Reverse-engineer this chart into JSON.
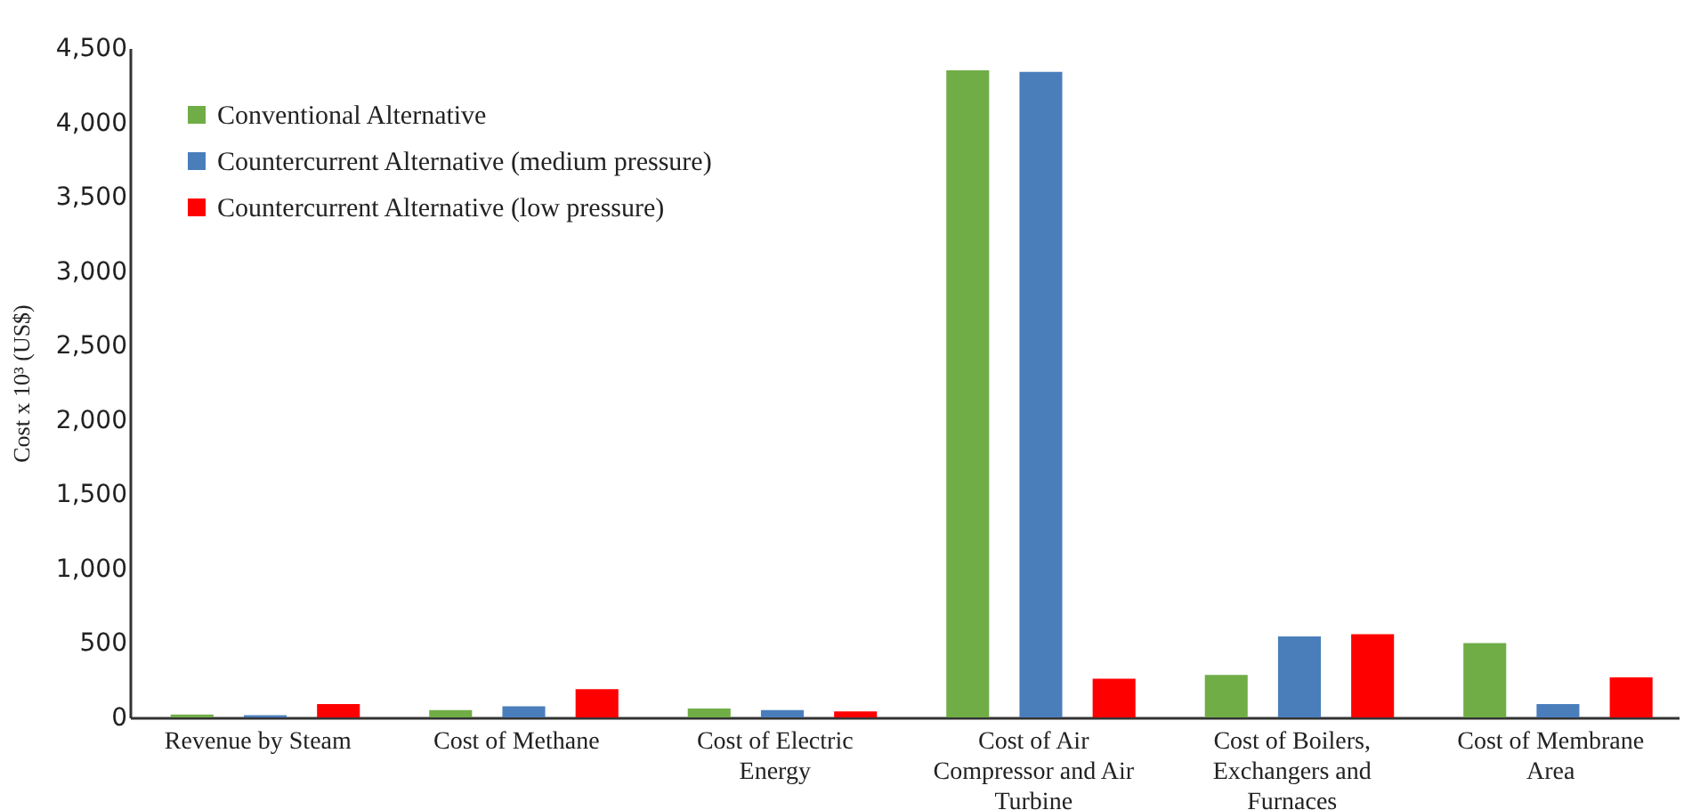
{
  "chart_data": {
    "type": "bar",
    "ylabel": "Cost x 10³ (US$)",
    "categories": [
      "Revenue by Steam",
      "Cost of Methane",
      "Cost of Electric Energy",
      "Cost of Air Compressor and Air Turbine",
      "Cost of Boilers, Exchangers and Furnaces",
      "Cost of Membrane Area"
    ],
    "series": [
      {
        "name": "Conventional Alternative",
        "color": "#70ad47",
        "values": [
          20,
          50,
          60,
          4350,
          285,
          500
        ]
      },
      {
        "name": "Countercurrent Alternative (medium pressure)",
        "color": "#4a7ebb",
        "values": [
          15,
          75,
          50,
          4340,
          545,
          90
        ]
      },
      {
        "name": "Countercurrent Alternative (low pressure)",
        "color": "#ff0000",
        "values": [
          90,
          190,
          40,
          260,
          560,
          270
        ]
      }
    ],
    "ylim": [
      0,
      4500
    ],
    "yticks": [
      {
        "value": 0,
        "label": "0"
      },
      {
        "value": 500,
        "label": "500"
      },
      {
        "value": 1000,
        "label": "1,000"
      },
      {
        "value": 1500,
        "label": "1,500"
      },
      {
        "value": 2000,
        "label": "2,000"
      },
      {
        "value": 2500,
        "label": "2,500"
      },
      {
        "value": 3000,
        "label": "3,000"
      },
      {
        "value": 3500,
        "label": "3,500"
      },
      {
        "value": 4000,
        "label": "4,000"
      },
      {
        "value": 4500,
        "label": "4,500"
      }
    ],
    "legend": "top left",
    "grid": false
  }
}
